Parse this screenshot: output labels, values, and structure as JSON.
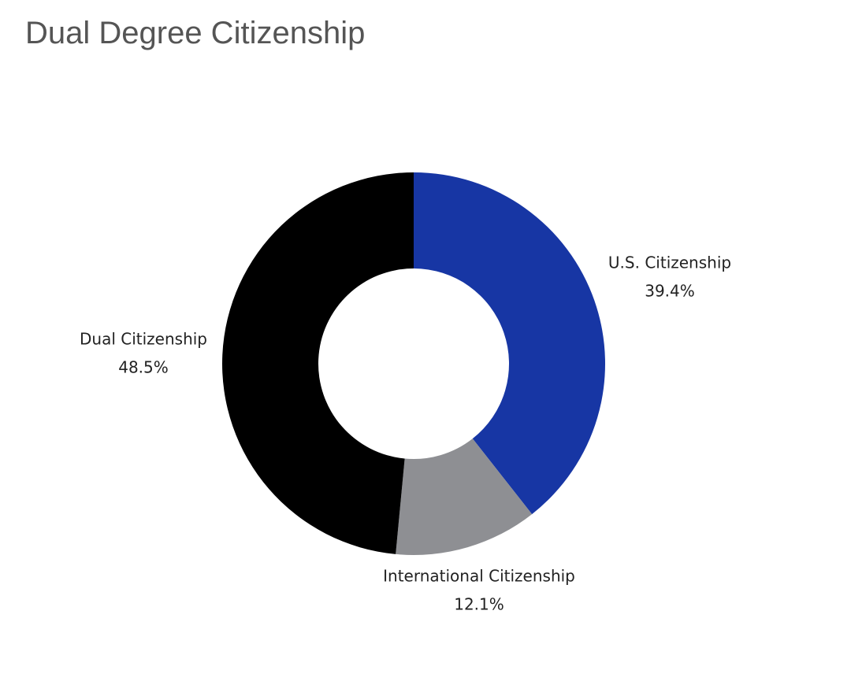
{
  "chart_data": {
    "type": "donut",
    "title": "Dual Degree Citizenship",
    "categories": [
      "U.S. Citizenship",
      "International Citizenship",
      "Dual Citizenship"
    ],
    "values": [
      39.4,
      12.1,
      48.5
    ],
    "value_labels": [
      "39.4%",
      "12.1%",
      "48.5%"
    ],
    "colors": [
      "#1736a4",
      "#8e8f93",
      "#000000"
    ]
  }
}
